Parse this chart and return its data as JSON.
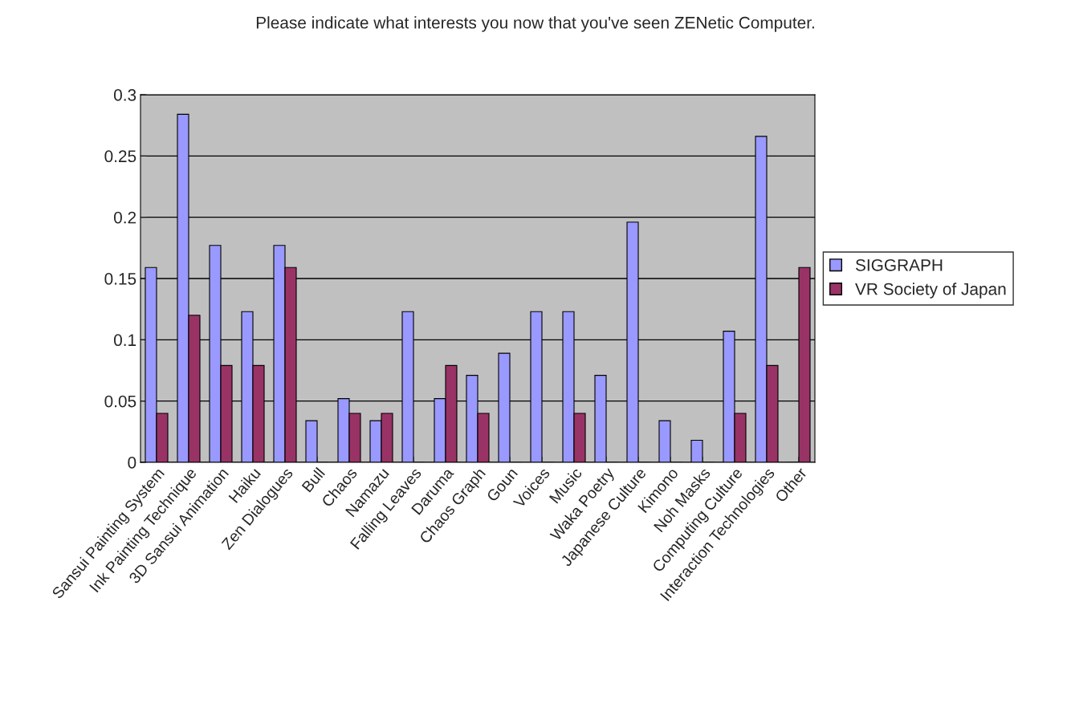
{
  "chart_data": {
    "type": "bar",
    "title": "Please indicate what interests you now that you've seen ZENetic Computer.",
    "categories": [
      "Sansui Painting System",
      "Ink Painting Technique",
      "3D Sansui Animation",
      "Haiku",
      "Zen Dialogues",
      "Bull",
      "Chaos",
      "Namazu",
      "Falling Leaves",
      "Daruma",
      "Chaos Graph",
      "Goun",
      "Voices",
      "Music",
      "Waka Poetry",
      "Japanese Culture",
      "Kimono",
      "Noh Masks",
      "Computing Culture",
      "Interaction Technologies",
      "Other"
    ],
    "series": [
      {
        "name": "SIGGRAPH",
        "color": "#9999ff",
        "values": [
          0.159,
          0.284,
          0.177,
          0.123,
          0.177,
          0.034,
          0.052,
          0.034,
          0.123,
          0.052,
          0.071,
          0.089,
          0.123,
          0.123,
          0.071,
          0.196,
          0.034,
          0.018,
          0.107,
          0.266,
          0
        ]
      },
      {
        "name": "VR Society of Japan",
        "color": "#993366",
        "values": [
          0.04,
          0.12,
          0.079,
          0.079,
          0.159,
          0,
          0.04,
          0.04,
          0,
          0.079,
          0.04,
          0,
          0,
          0.04,
          0,
          0,
          0,
          0,
          0.04,
          0.079,
          0.159
        ]
      }
    ],
    "ylim": [
      0,
      0.3
    ],
    "yticks": [
      0,
      0.05,
      0.1,
      0.15,
      0.2,
      0.25,
      0.3
    ],
    "grid": "y",
    "legend": "right"
  }
}
